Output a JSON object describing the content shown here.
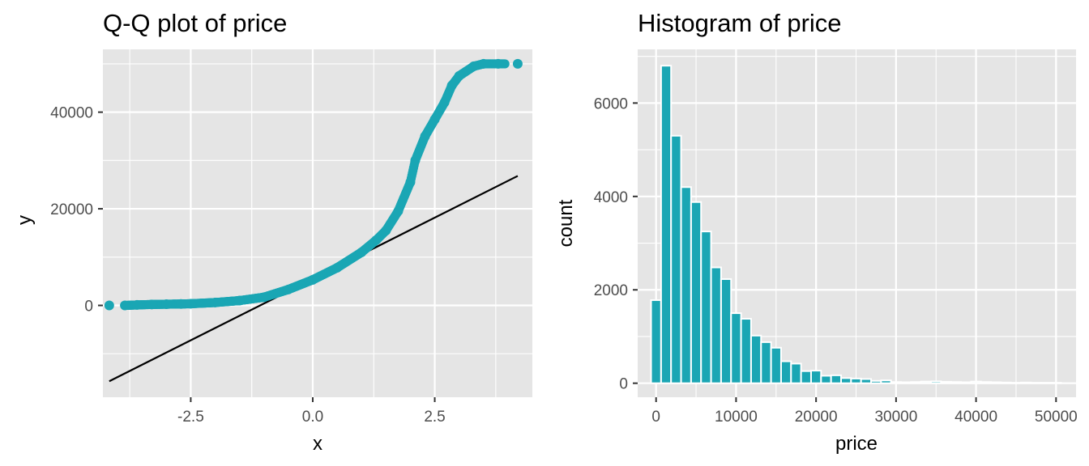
{
  "chart_data": [
    {
      "type": "scatter",
      "title": "Q-Q plot of price",
      "xlabel": "x",
      "ylabel": "y",
      "xlim": [
        -4.3,
        4.5
      ],
      "ylim": [
        -19000,
        53000
      ],
      "x_ticks": [
        -2.5,
        0.0,
        2.5
      ],
      "x_tick_labels": [
        "-2.5",
        "0.0",
        "2.5"
      ],
      "y_ticks": [
        0,
        20000,
        40000
      ],
      "y_tick_labels": [
        "0",
        "20000",
        "40000"
      ],
      "grid": true,
      "colors": {
        "points": "#1aa6b4",
        "line": "#000000",
        "panel": "#e5e5e5"
      },
      "series": [
        {
          "kind": "points",
          "x": [
            -4.17,
            -3.85,
            -3.6,
            -3.3,
            -3.0,
            -2.7,
            -2.5,
            -2.0,
            -1.5,
            -1.0,
            -0.5,
            0.0,
            0.5,
            1.0,
            1.3,
            1.5,
            1.75,
            2.0,
            2.1,
            2.3,
            2.5,
            2.7,
            2.85,
            3.0,
            3.3,
            3.5,
            3.8,
            4.2
          ],
          "y": [
            0,
            0,
            100,
            200,
            250,
            300,
            350,
            600,
            1000,
            1700,
            3300,
            5300,
            7800,
            11000,
            13500,
            15500,
            19500,
            25500,
            30000,
            35000,
            38500,
            42000,
            45500,
            47500,
            49500,
            50000,
            50000,
            50000
          ]
        },
        {
          "kind": "reference-line",
          "x": [
            -4.17,
            4.2
          ],
          "y": [
            -15700,
            26800
          ]
        }
      ]
    },
    {
      "type": "bar",
      "title": "Histogram of price",
      "xlabel": "price",
      "ylabel": "count",
      "xlim": [
        -2300,
        52500
      ],
      "ylim": [
        -300,
        7150
      ],
      "x_ticks": [
        0,
        10000,
        20000,
        30000,
        40000,
        50000
      ],
      "x_tick_labels": [
        "0",
        "10000",
        "20000",
        "30000",
        "40000",
        "50000"
      ],
      "y_ticks": [
        0,
        2000,
        4000,
        6000
      ],
      "y_tick_labels": [
        "0",
        "2000",
        "4000",
        "6000"
      ],
      "grid": true,
      "colors": {
        "bars": "#1aa6b4",
        "bar_outline": "#ffffff",
        "panel": "#e5e5e5"
      },
      "bin_width": 1250,
      "bin_centers": [
        0,
        1250,
        2500,
        3750,
        5000,
        6250,
        7500,
        8750,
        10000,
        11250,
        12500,
        13750,
        15000,
        16250,
        17500,
        18750,
        20000,
        21250,
        22500,
        23750,
        25000,
        26250,
        27500,
        28750,
        30000,
        31250,
        32500,
        33750,
        35000,
        36250,
        37500,
        38750,
        40000,
        41250,
        42500,
        43750,
        45000,
        46250,
        47500,
        48750,
        50000
      ],
      "values": [
        1780,
        6800,
        5300,
        4200,
        3880,
        3250,
        2480,
        2230,
        1500,
        1380,
        1020,
        880,
        760,
        470,
        420,
        260,
        270,
        160,
        170,
        110,
        100,
        90,
        50,
        60,
        25,
        20,
        25,
        35,
        40,
        30,
        25,
        20,
        35,
        25,
        20,
        15,
        10,
        15,
        10,
        10,
        10
      ]
    }
  ]
}
